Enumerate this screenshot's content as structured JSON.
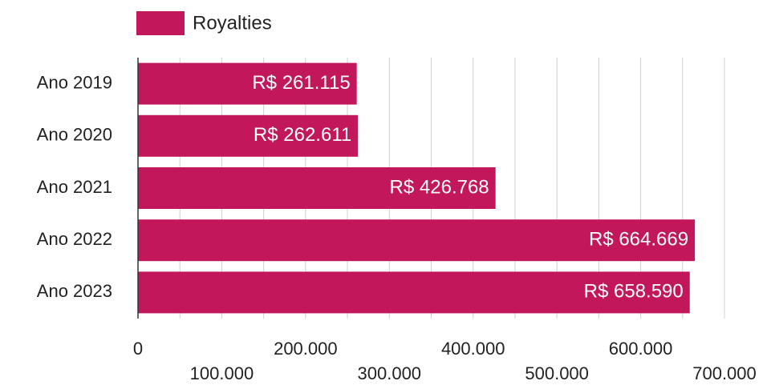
{
  "chart_data": {
    "type": "barh",
    "categories": [
      "Ano 2019",
      "Ano 2020",
      "Ano 2021",
      "Ano 2022",
      "Ano 2023"
    ],
    "series": [
      {
        "name": "Royalties",
        "color": "#c2185b",
        "values": [
          261115,
          262611,
          426768,
          664669,
          658590
        ],
        "value_labels": [
          "R$ 261.115",
          "R$ 262.611",
          "R$ 426.768",
          "R$ 664.669",
          "R$ 658.590"
        ]
      }
    ],
    "xlim": [
      0,
      700000
    ],
    "xticks": [
      0,
      {
        "value": 100000,
        "label": "100.000"
      },
      {
        "value": 200000,
        "label": "200.000"
      },
      {
        "value": 300000,
        "label": "300.000"
      },
      {
        "value": 400000,
        "label": "400.000"
      },
      {
        "value": 500000,
        "label": "500.000"
      },
      {
        "value": 600000,
        "label": "600.000"
      },
      {
        "value": 700000,
        "label": "700.000"
      }
    ],
    "xminor": [
      50000,
      150000,
      250000,
      350000,
      450000,
      550000,
      650000
    ],
    "grid": true,
    "legend": "top"
  }
}
